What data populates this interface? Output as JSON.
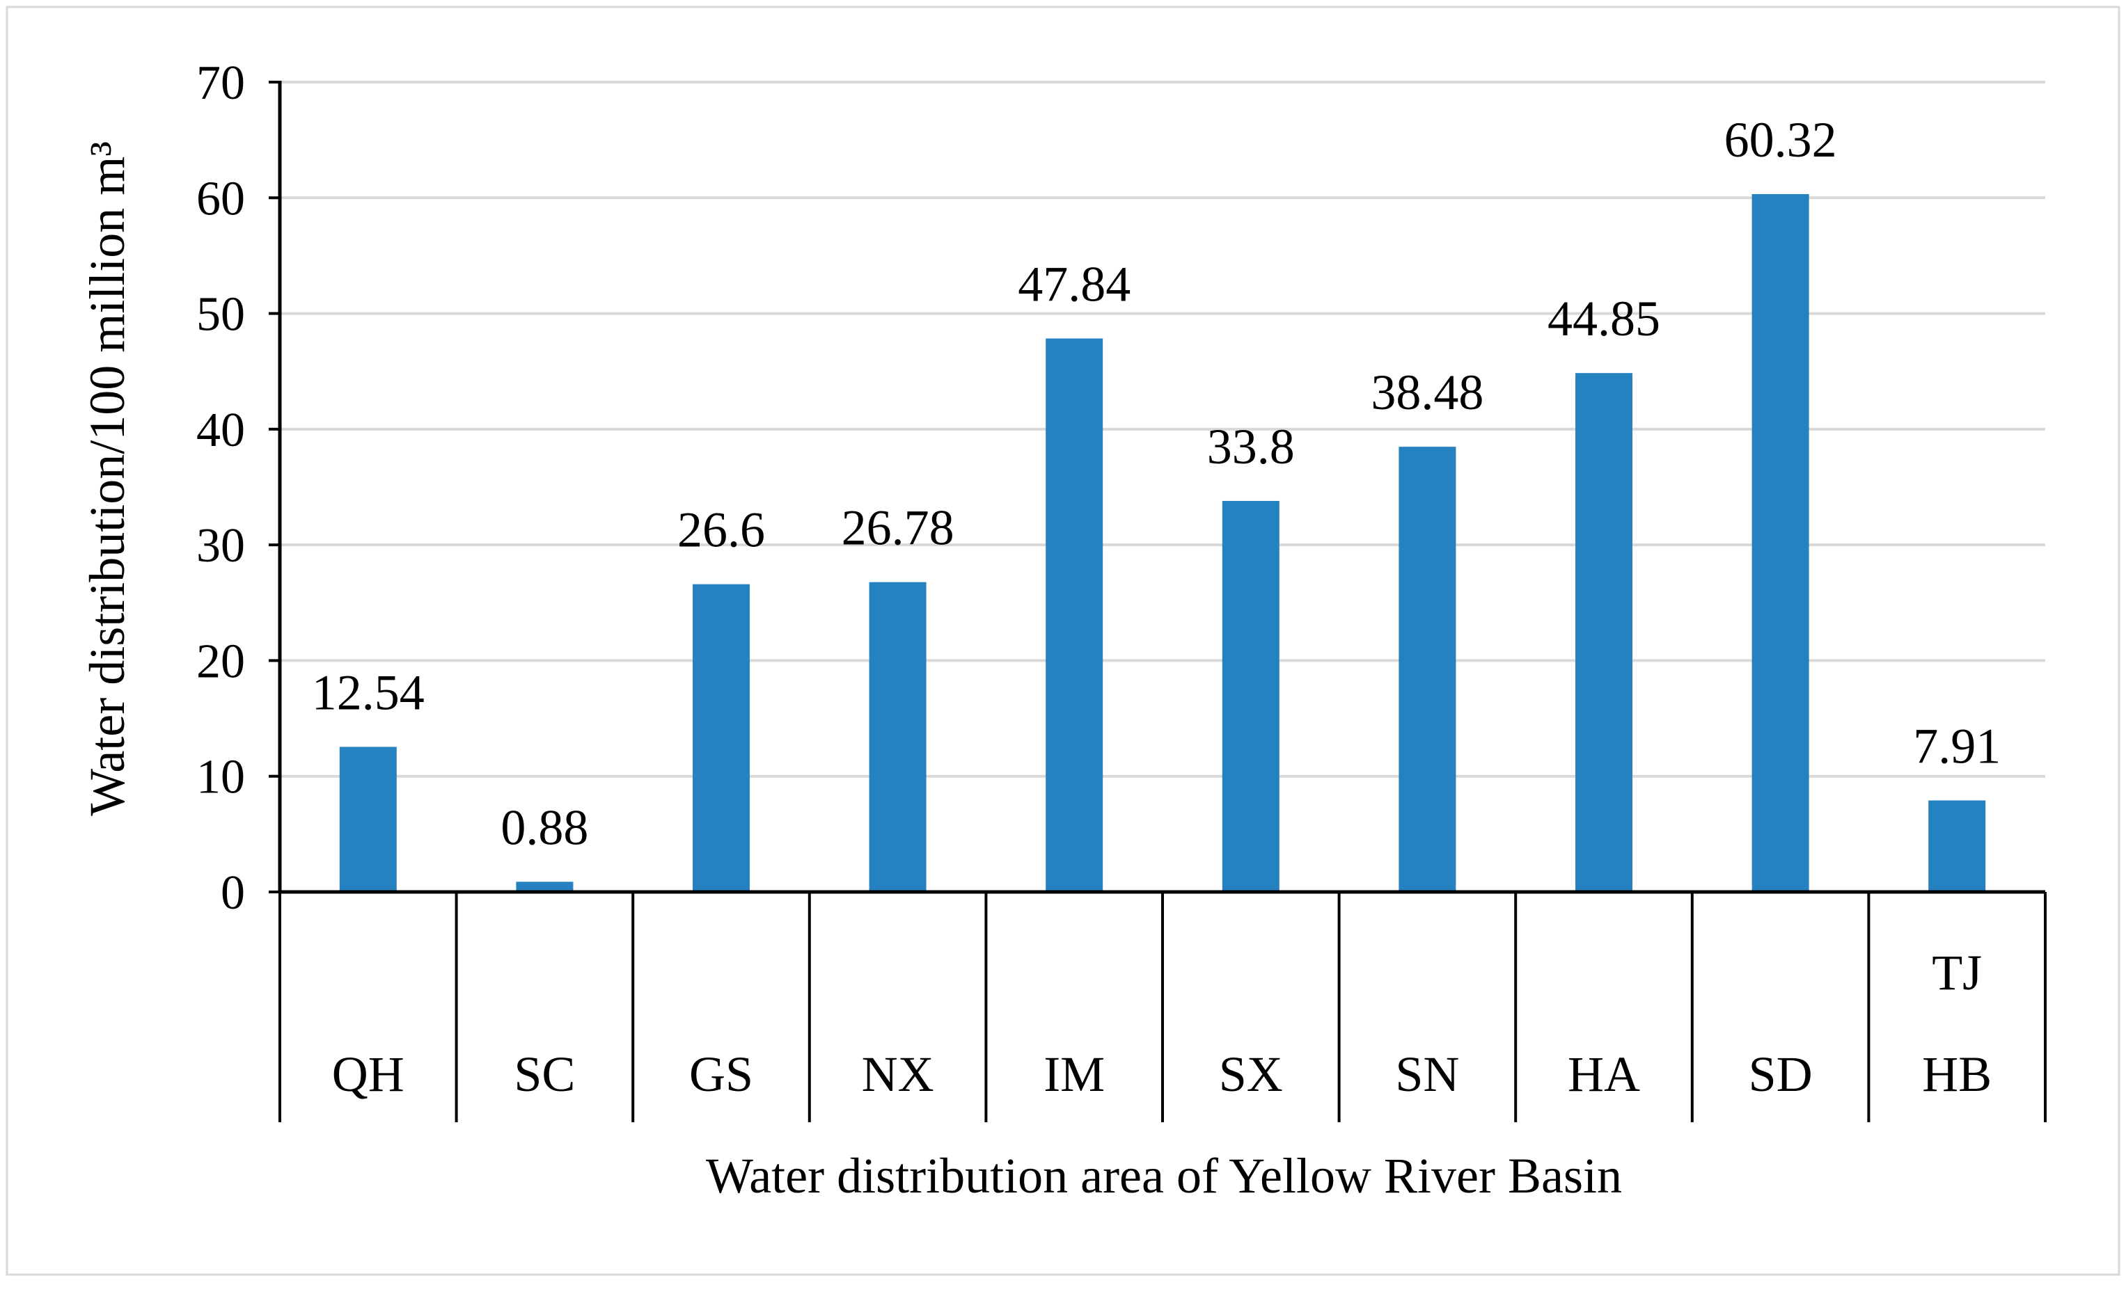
{
  "chart_data": {
    "type": "bar",
    "title": "",
    "xlabel": "Water distribution area of Yellow River Basin",
    "ylabel": "Water distribution/100 million m³",
    "ylim": [
      0,
      70
    ],
    "yticks": [
      0,
      10,
      20,
      30,
      40,
      50,
      60,
      70
    ],
    "grid": true,
    "categories": [
      {
        "lines": [
          "QH"
        ]
      },
      {
        "lines": [
          "SC"
        ]
      },
      {
        "lines": [
          "GS"
        ]
      },
      {
        "lines": [
          "NX"
        ]
      },
      {
        "lines": [
          "IM"
        ]
      },
      {
        "lines": [
          "SX"
        ]
      },
      {
        "lines": [
          "SN"
        ]
      },
      {
        "lines": [
          "HA"
        ]
      },
      {
        "lines": [
          "SD"
        ]
      },
      {
        "lines": [
          "TJ",
          "HB"
        ]
      }
    ],
    "values": [
      12.54,
      0.88,
      26.6,
      26.78,
      47.84,
      33.8,
      38.48,
      44.85,
      60.32,
      7.91
    ],
    "value_labels": [
      "12.54",
      "0.88",
      "26.6",
      "26.78",
      "47.84",
      "33.8",
      "38.48",
      "44.85",
      "60.32",
      "7.91"
    ],
    "bar_color": "#2681C1",
    "grid_color": "#D9D9D9",
    "axis_color": "#000000",
    "border_color": "#D9D9D9"
  }
}
